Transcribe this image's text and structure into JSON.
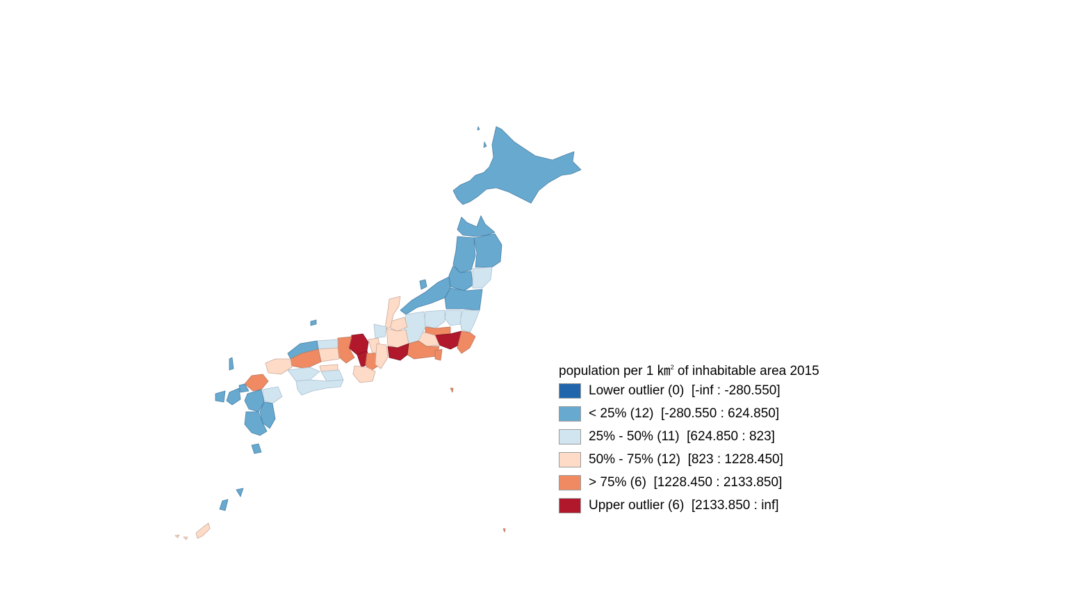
{
  "legend": {
    "title_pre": "population per 1 ㎞",
    "title_sup": "2",
    "title_post": " of inhabitable area 2015",
    "items": [
      {
        "label": "Lower outlier (0)  [-inf : -280.550]",
        "color": "#2166ac"
      },
      {
        "label": "< 25% (12)  [-280.550 : 624.850]",
        "color": "#67a9cf"
      },
      {
        "label": "25% - 50% (11)  [624.850 : 823]",
        "color": "#d1e5f0"
      },
      {
        "label": "50% - 75% (12)  [823 : 1228.450]",
        "color": "#fddbc7"
      },
      {
        "label": "> 75% (6)  [1228.450 : 2133.850]",
        "color": "#ef8a62"
      },
      {
        "label": "Upper outlier (6)  [2133.850 : inf]",
        "color": "#b2182b"
      }
    ]
  },
  "map": {
    "classes": {
      "q1": "#67a9cf",
      "q2": "#d1e5f0",
      "q3": "#fddbc7",
      "q4": "#ef8a62",
      "upper": "#b2182b"
    }
  }
}
